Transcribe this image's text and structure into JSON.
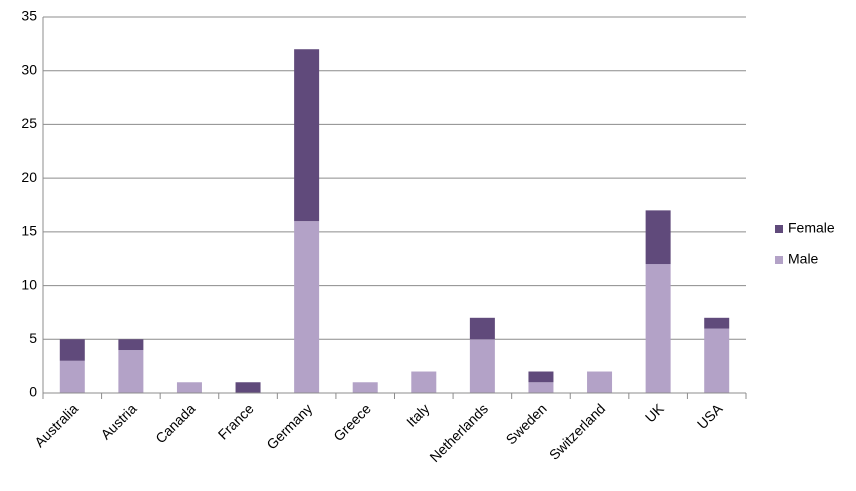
{
  "chart_data": {
    "type": "stacked_bar",
    "categories": [
      "Australia",
      "Austria",
      "Canada",
      "France",
      "Germany",
      "Greece",
      "Italy",
      "Netherlands",
      "Sweden",
      "Switzerland",
      "UK",
      "USA"
    ],
    "series": [
      {
        "name": "Male",
        "color": "#b3a2c7",
        "values": [
          3,
          4,
          1,
          0,
          16,
          1,
          2,
          5,
          1,
          2,
          12,
          6
        ]
      },
      {
        "name": "Female",
        "color": "#604a7b",
        "values": [
          2,
          1,
          0,
          1,
          16,
          0,
          0,
          2,
          1,
          0,
          5,
          1
        ]
      }
    ],
    "ylim": [
      0,
      35
    ],
    "yticks": [
      0,
      5,
      10,
      15,
      20,
      25,
      30,
      35
    ],
    "grid": true,
    "legend": "right"
  }
}
